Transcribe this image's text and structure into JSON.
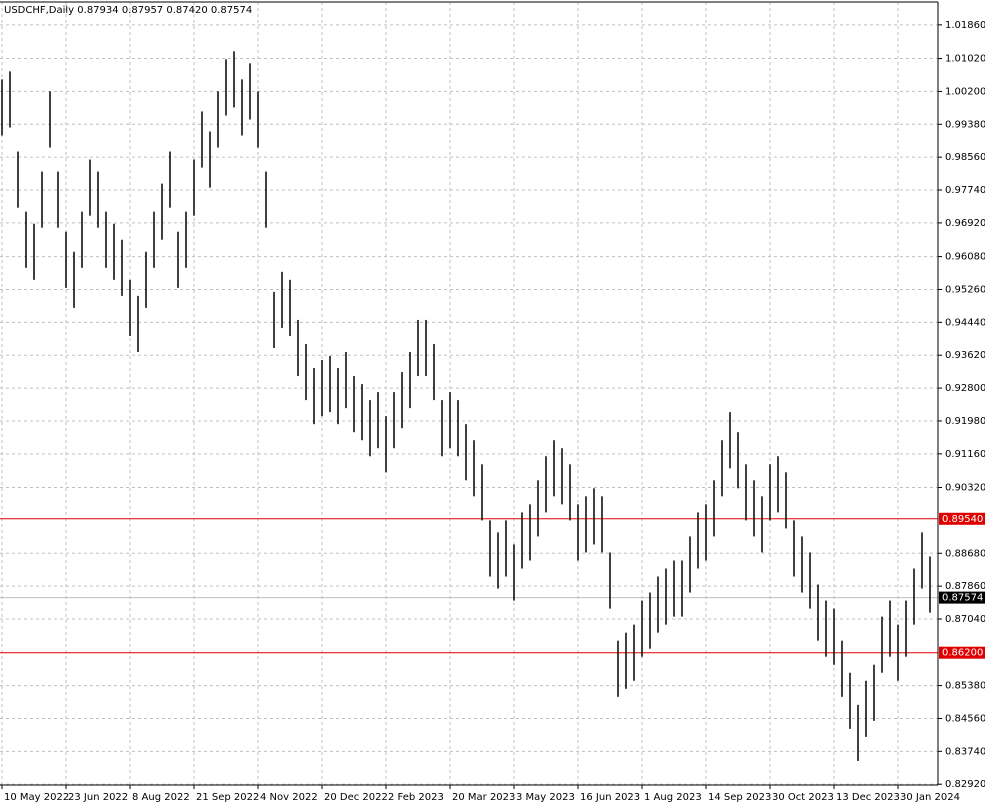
{
  "chart_data": {
    "type": "ohlc-bar",
    "title": "USDCHF,Daily  0.87934 0.87957 0.87420 0.87574",
    "categories": [
      "10 May 2022",
      null,
      null,
      null,
      null,
      null,
      null,
      null,
      "23 Jun 2022",
      null,
      null,
      null,
      null,
      null,
      null,
      null,
      "8 Aug 2022",
      null,
      null,
      null,
      null,
      null,
      null,
      null,
      "21 Sep 2022",
      null,
      null,
      null,
      null,
      null,
      null,
      null,
      "4 Nov 2022",
      null,
      null,
      null,
      null,
      null,
      null,
      null,
      "20 Dec 2022",
      null,
      null,
      null,
      null,
      null,
      null,
      null,
      "2 Feb 2023",
      null,
      null,
      null,
      null,
      null,
      null,
      null,
      "20 Mar 2023",
      null,
      null,
      null,
      null,
      null,
      null,
      null,
      "3 May 2023",
      null,
      null,
      null,
      null,
      null,
      null,
      null,
      "16 Jun 2023",
      null,
      null,
      null,
      null,
      null,
      null,
      null,
      "1 Aug 2023",
      null,
      null,
      null,
      null,
      null,
      null,
      null,
      "14 Sep 2023",
      null,
      null,
      null,
      null,
      null,
      null,
      null,
      "30 Oct 2023",
      null,
      null,
      null,
      null,
      null,
      null,
      null,
      "13 Dec 2023",
      null,
      null,
      null,
      null,
      null,
      null,
      null,
      "30 Jan 2024",
      null,
      null,
      null,
      null
    ],
    "high": [
      1.005,
      1.007,
      0.987,
      0.972,
      0.969,
      0.982,
      1.002,
      0.982,
      0.967,
      0.962,
      0.972,
      0.985,
      0.982,
      0.972,
      0.969,
      0.965,
      0.955,
      0.951,
      0.962,
      0.972,
      0.979,
      0.987,
      0.967,
      0.972,
      0.985,
      0.997,
      0.992,
      1.002,
      1.01,
      1.012,
      1.005,
      1.009,
      1.002,
      0.982,
      0.952,
      0.957,
      0.955,
      0.945,
      0.939,
      0.933,
      0.935,
      0.936,
      0.933,
      0.937,
      0.931,
      0.929,
      0.925,
      0.927,
      0.921,
      0.927,
      0.932,
      0.937,
      0.945,
      0.945,
      0.939,
      0.925,
      0.927,
      0.925,
      0.919,
      0.915,
      0.909,
      0.895,
      0.892,
      0.895,
      0.889,
      0.897,
      0.899,
      0.905,
      0.911,
      0.915,
      0.913,
      0.909,
      0.899,
      0.901,
      0.903,
      0.901,
      0.887,
      0.865,
      0.867,
      0.869,
      0.875,
      0.877,
      0.881,
      0.883,
      0.885,
      0.885,
      0.891,
      0.897,
      0.899,
      0.905,
      0.915,
      0.922,
      0.917,
      0.909,
      0.905,
      0.901,
      0.909,
      0.911,
      0.907,
      0.895,
      0.891,
      0.887,
      0.879,
      0.875,
      0.873,
      0.865,
      0.857,
      0.849,
      0.855,
      0.859,
      0.871,
      0.875,
      0.869,
      0.875,
      0.883,
      0.892,
      0.886
    ],
    "low": [
      0.991,
      0.993,
      0.973,
      0.958,
      0.955,
      0.968,
      0.988,
      0.968,
      0.953,
      0.948,
      0.958,
      0.971,
      0.968,
      0.958,
      0.955,
      0.951,
      0.941,
      0.937,
      0.948,
      0.958,
      0.965,
      0.973,
      0.953,
      0.958,
      0.971,
      0.983,
      0.978,
      0.988,
      0.996,
      0.998,
      0.991,
      0.995,
      0.988,
      0.968,
      0.938,
      0.943,
      0.941,
      0.931,
      0.925,
      0.919,
      0.921,
      0.922,
      0.919,
      0.923,
      0.917,
      0.915,
      0.911,
      0.913,
      0.907,
      0.913,
      0.918,
      0.923,
      0.931,
      0.931,
      0.925,
      0.911,
      0.913,
      0.911,
      0.905,
      0.901,
      0.895,
      0.881,
      0.878,
      0.881,
      0.875,
      0.883,
      0.885,
      0.891,
      0.897,
      0.901,
      0.899,
      0.895,
      0.885,
      0.887,
      0.889,
      0.887,
      0.873,
      0.851,
      0.853,
      0.855,
      0.861,
      0.863,
      0.867,
      0.869,
      0.871,
      0.871,
      0.877,
      0.883,
      0.885,
      0.891,
      0.901,
      0.908,
      0.903,
      0.895,
      0.891,
      0.887,
      0.895,
      0.897,
      0.893,
      0.881,
      0.877,
      0.873,
      0.865,
      0.861,
      0.859,
      0.851,
      0.843,
      0.835,
      0.841,
      0.845,
      0.857,
      0.861,
      0.855,
      0.861,
      0.869,
      0.878,
      0.872
    ],
    "color": "#000000",
    "ylim": [
      0.829,
      1.0243
    ],
    "yticks": [
      {
        "value": 1.0186,
        "label": "1.01860"
      },
      {
        "value": 1.0102,
        "label": "1.01020"
      },
      {
        "value": 1.002,
        "label": "1.00200"
      },
      {
        "value": 0.9938,
        "label": "0.99380"
      },
      {
        "value": 0.9856,
        "label": "0.98560"
      },
      {
        "value": 0.9774,
        "label": "0.97740"
      },
      {
        "value": 0.9692,
        "label": "0.96920"
      },
      {
        "value": 0.9608,
        "label": "0.96080"
      },
      {
        "value": 0.9526,
        "label": "0.95260"
      },
      {
        "value": 0.9444,
        "label": "0.94440"
      },
      {
        "value": 0.9362,
        "label": "0.93620"
      },
      {
        "value": 0.928,
        "label": "0.92800"
      },
      {
        "value": 0.9198,
        "label": "0.91980"
      },
      {
        "value": 0.9116,
        "label": "0.91160"
      },
      {
        "value": 0.9032,
        "label": "0.90320"
      },
      {
        "value": 0.8868,
        "label": "0.88680"
      },
      {
        "value": 0.8786,
        "label": "0.87860"
      },
      {
        "value": 0.8704,
        "label": "0.87040"
      },
      {
        "value": 0.8538,
        "label": "0.85380"
      },
      {
        "value": 0.8456,
        "label": "0.84560"
      },
      {
        "value": 0.8374,
        "label": "0.83740"
      },
      {
        "value": 0.8292,
        "label": "0.82920"
      }
    ],
    "grid": true,
    "levels": [
      {
        "value": 0.8954,
        "label": "0.89540",
        "color": "#e00000"
      },
      {
        "value": 0.862,
        "label": "0.86200",
        "color": "#e00000"
      }
    ],
    "last_price": {
      "value": 0.87574,
      "label": "0.87574",
      "color": "#c0c0c0"
    }
  }
}
